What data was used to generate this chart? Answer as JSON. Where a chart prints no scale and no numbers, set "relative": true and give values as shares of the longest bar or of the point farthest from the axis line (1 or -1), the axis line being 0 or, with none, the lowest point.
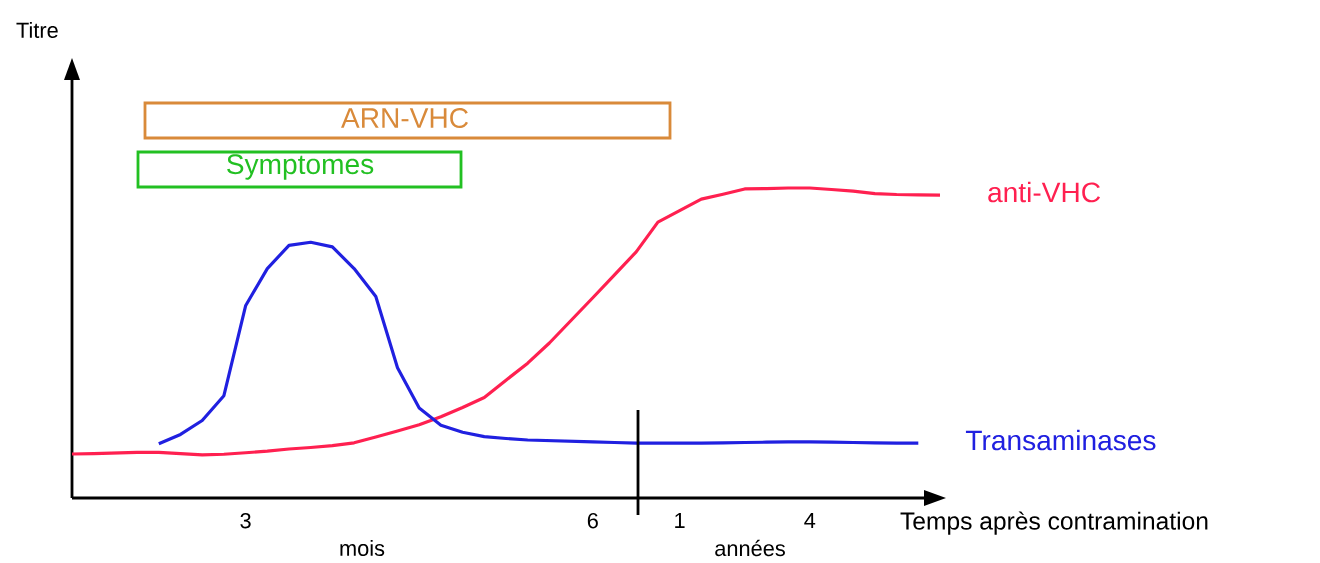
{
  "chart_data": {
    "type": "line",
    "relative": true,
    "xlabel": "Temps après contramination",
    "categories": [
      null,
      null,
      null,
      null,
      null,
      null,
      null,
      null,
      "3",
      null,
      null,
      null,
      null,
      null,
      null,
      null,
      null,
      null,
      null,
      null,
      null,
      null,
      null,
      null,
      "6",
      null,
      null,
      null,
      "1",
      null,
      null,
      null,
      null,
      null,
      "4",
      null,
      null,
      null,
      null,
      null,
      null
    ],
    "series": [
      {
        "name": "anti-VHC",
        "color": "#ff2050",
        "values": [
          0.142,
          0.143,
          0.145,
          0.147,
          0.147,
          0.143,
          0.139,
          0.141,
          0.146,
          0.151,
          0.158,
          0.163,
          0.169,
          0.178,
          0.197,
          0.216,
          0.236,
          0.262,
          0.292,
          0.324,
          0.38,
          0.435,
          0.5,
          0.573,
          0.646,
          0.72,
          0.794,
          0.89,
          0.927,
          0.964,
          0.98,
          0.997,
          0.998,
          1,
          1,
          0.995,
          0.99,
          0.982,
          0.979,
          0.978,
          0.977
        ]
      },
      {
        "name": "Transaminases",
        "color": "#2020e0",
        "values": [
          null,
          null,
          null,
          null,
          0.175,
          0.205,
          0.25,
          0.33,
          0.62,
          0.74,
          0.815,
          0.825,
          0.81,
          0.74,
          0.65,
          0.42,
          0.29,
          0.235,
          0.212,
          0.198,
          0.192,
          0.187,
          0.185,
          0.183,
          0.181,
          0.179,
          0.177,
          0.177,
          0.177,
          0.177,
          0.178,
          0.179,
          0.18,
          0.181,
          0.181,
          0.18,
          0.179,
          0.178,
          0.177,
          0.177,
          null
        ]
      }
    ],
    "annotations": [
      "Titre",
      "ARN-VHC",
      "Symptomes",
      "mois",
      "années"
    ],
    "grid": false
  }
}
